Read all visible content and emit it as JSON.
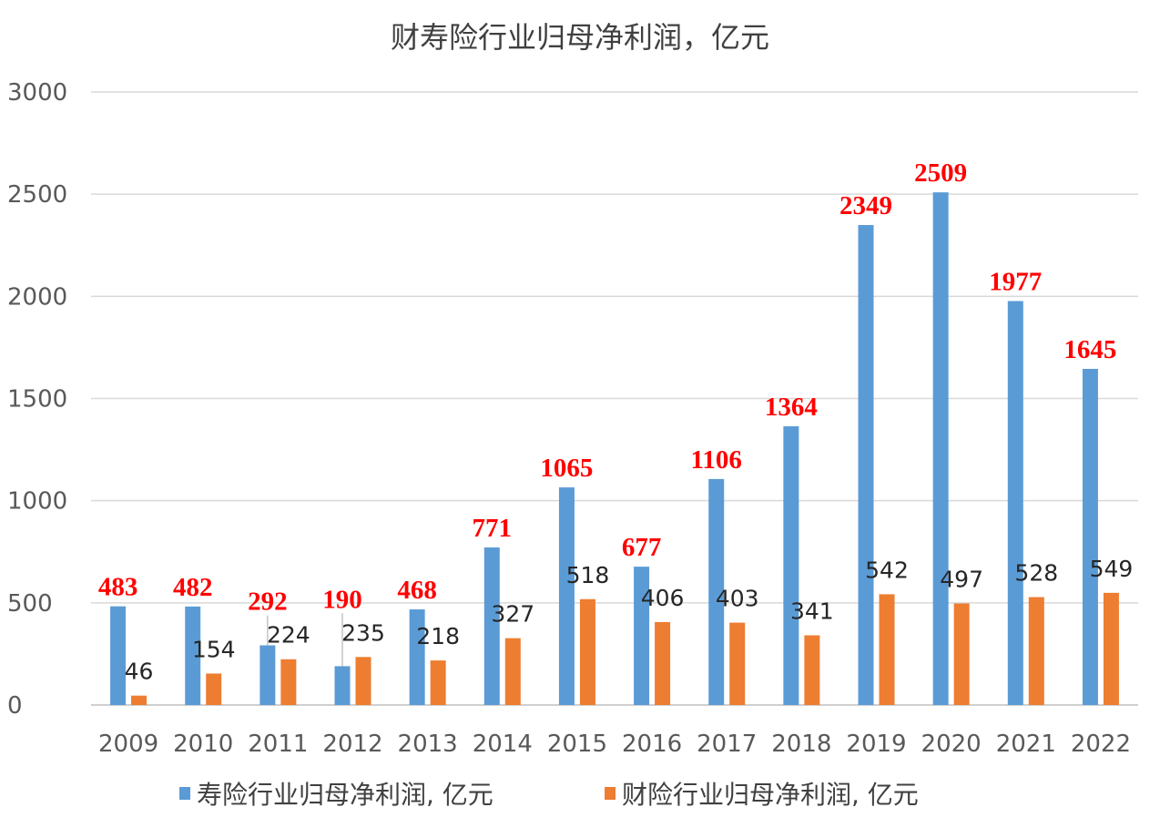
{
  "chart_data": {
    "type": "bar",
    "title": "财寿险行业归母净利润，亿元",
    "categories": [
      "2009",
      "2010",
      "2011",
      "2012",
      "2013",
      "2014",
      "2015",
      "2016",
      "2017",
      "2018",
      "2019",
      "2020",
      "2021",
      "2022"
    ],
    "series": [
      {
        "name": "寿险行业归母净利润, 亿元",
        "color": "#5b9bd5",
        "label_color": "#ff0000",
        "values": [
          483,
          482,
          292,
          190,
          468,
          771,
          1065,
          677,
          1106,
          1364,
          2349,
          2509,
          1977,
          1645
        ]
      },
      {
        "name": "财险行业归母净利润, 亿元",
        "color": "#ed7d31",
        "label_color": "#262626",
        "values": [
          46,
          154,
          224,
          235,
          218,
          327,
          518,
          406,
          403,
          341,
          542,
          497,
          528,
          549
        ]
      }
    ],
    "ylim": [
      0,
      3000
    ],
    "yticks": [
      0,
      500,
      1000,
      1500,
      2000,
      2500,
      3000
    ],
    "grid": true,
    "legend": "bottom",
    "xlabel": "",
    "ylabel": ""
  }
}
